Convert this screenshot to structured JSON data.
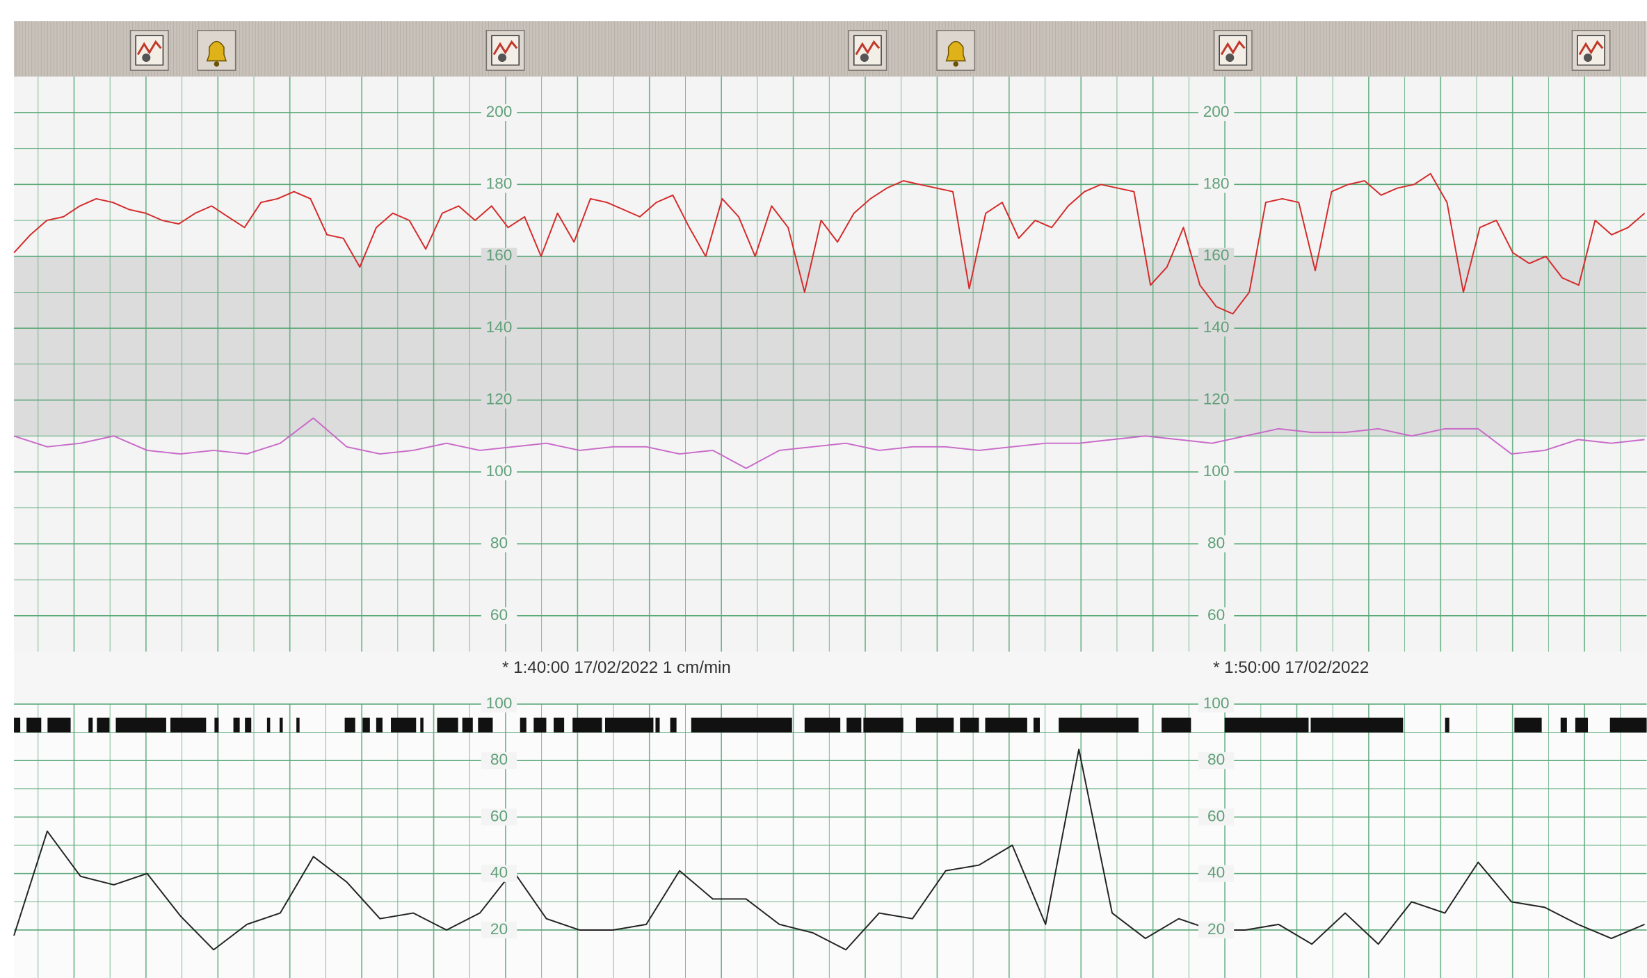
{
  "chart_data": [
    {
      "type": "line",
      "annotations": [
        "* 1:40:00 17/02/2022  1 cm/min",
        "* 1:50:00 17/02/2022"
      ],
      "ylim": [
        50,
        210
      ],
      "yticks": [
        60,
        80,
        100,
        120,
        140,
        160,
        180,
        200
      ],
      "grid": true,
      "shaded_range": [
        110,
        160
      ],
      "series": [
        {
          "color": "#d42a2a",
          "values": [
            161,
            166,
            170,
            171,
            174,
            176,
            175,
            173,
            172,
            170,
            169,
            172,
            174,
            171,
            168,
            175,
            176,
            178,
            176,
            166,
            165,
            157,
            168,
            172,
            170,
            162,
            172,
            174,
            170,
            174,
            168,
            171,
            160,
            172,
            164,
            176,
            175,
            173,
            171,
            175,
            177,
            168,
            160,
            176,
            171,
            160,
            174,
            168,
            150,
            170,
            164,
            172,
            176,
            179,
            181,
            180,
            179,
            178,
            151,
            172,
            175,
            165,
            170,
            168,
            174,
            178,
            180,
            179,
            178,
            152,
            157,
            168,
            152,
            146,
            144,
            150,
            175,
            176,
            175,
            156,
            178,
            180,
            181,
            177,
            179,
            180,
            183,
            175,
            150,
            168,
            170,
            161,
            158,
            160,
            154,
            152,
            170,
            166,
            168,
            172
          ]
        },
        {
          "color": "#c86ac8",
          "values": [
            110,
            107,
            108,
            110,
            106,
            105,
            106,
            105,
            108,
            115,
            107,
            105,
            106,
            108,
            106,
            107,
            108,
            106,
            107,
            107,
            105,
            106,
            101,
            106,
            107,
            108,
            106,
            107,
            107,
            106,
            107,
            108,
            108,
            109,
            110,
            109,
            108,
            110,
            112,
            111,
            111,
            112,
            110,
            112,
            112,
            105,
            106,
            109,
            108,
            109
          ]
        }
      ]
    },
    {
      "type": "line",
      "ylim": [
        3,
        100
      ],
      "yticks": [
        20,
        40,
        60,
        80,
        100
      ],
      "grid": true,
      "series": [
        {
          "color": "#222222",
          "values": [
            18,
            55,
            39,
            36,
            40,
            25,
            13,
            22,
            26,
            46,
            37,
            24,
            26,
            20,
            26,
            41,
            24,
            20,
            20,
            22,
            41,
            31,
            31,
            22,
            19,
            13,
            26,
            24,
            41,
            43,
            50,
            22,
            84,
            26,
            17,
            24,
            20,
            20,
            22,
            15,
            26,
            15,
            30,
            26,
            44,
            30,
            28,
            22,
            17,
            22
          ]
        }
      ]
    }
  ]
}
